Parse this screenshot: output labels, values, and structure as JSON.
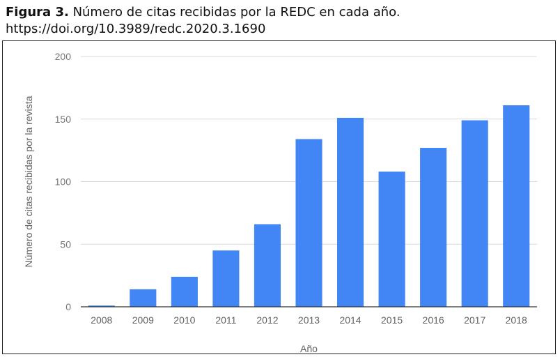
{
  "caption": {
    "label": "Figura 3.",
    "text": "Número de citas recibidas por la REDC en cada año.",
    "doi": "https://doi.org/10.3989/redc.2020.3.1690"
  },
  "chart_data": {
    "type": "bar",
    "categories": [
      "2008",
      "2009",
      "2010",
      "2011",
      "2012",
      "2013",
      "2014",
      "2015",
      "2016",
      "2017",
      "2018"
    ],
    "values": [
      1,
      14,
      24,
      45,
      66,
      134,
      151,
      108,
      127,
      149,
      161
    ],
    "title": "",
    "xlabel": "Año",
    "ylabel": "Número de citas recibidas por la revista",
    "ylim": [
      0,
      200
    ],
    "yticks": [
      0,
      50,
      100,
      150,
      200
    ],
    "grid": true,
    "legend": "none",
    "colors": {
      "bar": "#4285f4",
      "grid": "#d9d9d9",
      "axis": "#333333"
    }
  }
}
